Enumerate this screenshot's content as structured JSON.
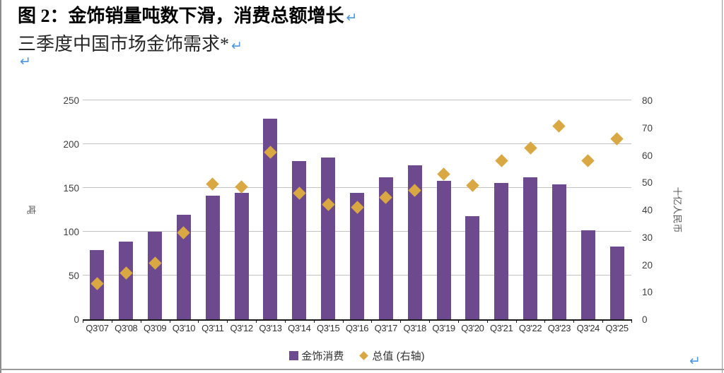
{
  "page": {
    "title": "图 2：金饰销量吨数下滑，消费总额增长",
    "subtitle": "三季度中国市场金饰需求*",
    "return_mark": "↵",
    "return_mark_color": "#4c97e0"
  },
  "chart_data": {
    "type": "bar",
    "title": "三季度中国市场金饰需求*",
    "categories": [
      "Q3'07",
      "Q3'08",
      "Q3'09",
      "Q3'10",
      "Q3'11",
      "Q3'12",
      "Q3'13",
      "Q3'14",
      "Q3'15",
      "Q3'16",
      "Q3'17",
      "Q3'18",
      "Q3'19",
      "Q3'20",
      "Q3'21",
      "Q3'22",
      "Q3'23",
      "Q3'24",
      "Q3'25"
    ],
    "series": [
      {
        "name": "金饰消费",
        "type": "bar",
        "axis": "left",
        "color": "#6d4a8e",
        "values": [
          79,
          89,
          100,
          119,
          141,
          144,
          229,
          181,
          185,
          144,
          162,
          176,
          158,
          118,
          156,
          162,
          154,
          102,
          83
        ]
      },
      {
        "name": "总值 (右轴)",
        "type": "scatter",
        "marker": "diamond",
        "axis": "right",
        "color": "#d9a843",
        "values": [
          13,
          17,
          20.5,
          31.5,
          49.5,
          48.5,
          61,
          46,
          42,
          41,
          44.5,
          47,
          53,
          49,
          58,
          62.5,
          70.5,
          58,
          66
        ]
      }
    ],
    "left_axis": {
      "label": "吨",
      "min": 0,
      "max": 250,
      "ticks": [
        0,
        50,
        100,
        150,
        200,
        250
      ]
    },
    "right_axis": {
      "label": "十亿人民币",
      "min": 0,
      "max": 80,
      "ticks": [
        0,
        10,
        20,
        30,
        40,
        50,
        60,
        70,
        80
      ]
    },
    "legend": [
      {
        "label": "金饰消费",
        "marker": "square",
        "color": "#6d4a8e"
      },
      {
        "label": "总值 (右轴)",
        "marker": "diamond",
        "color": "#d9a843"
      }
    ],
    "grid": true,
    "gridline_color": "#c3c3c3",
    "legend_position": "bottom-center"
  }
}
